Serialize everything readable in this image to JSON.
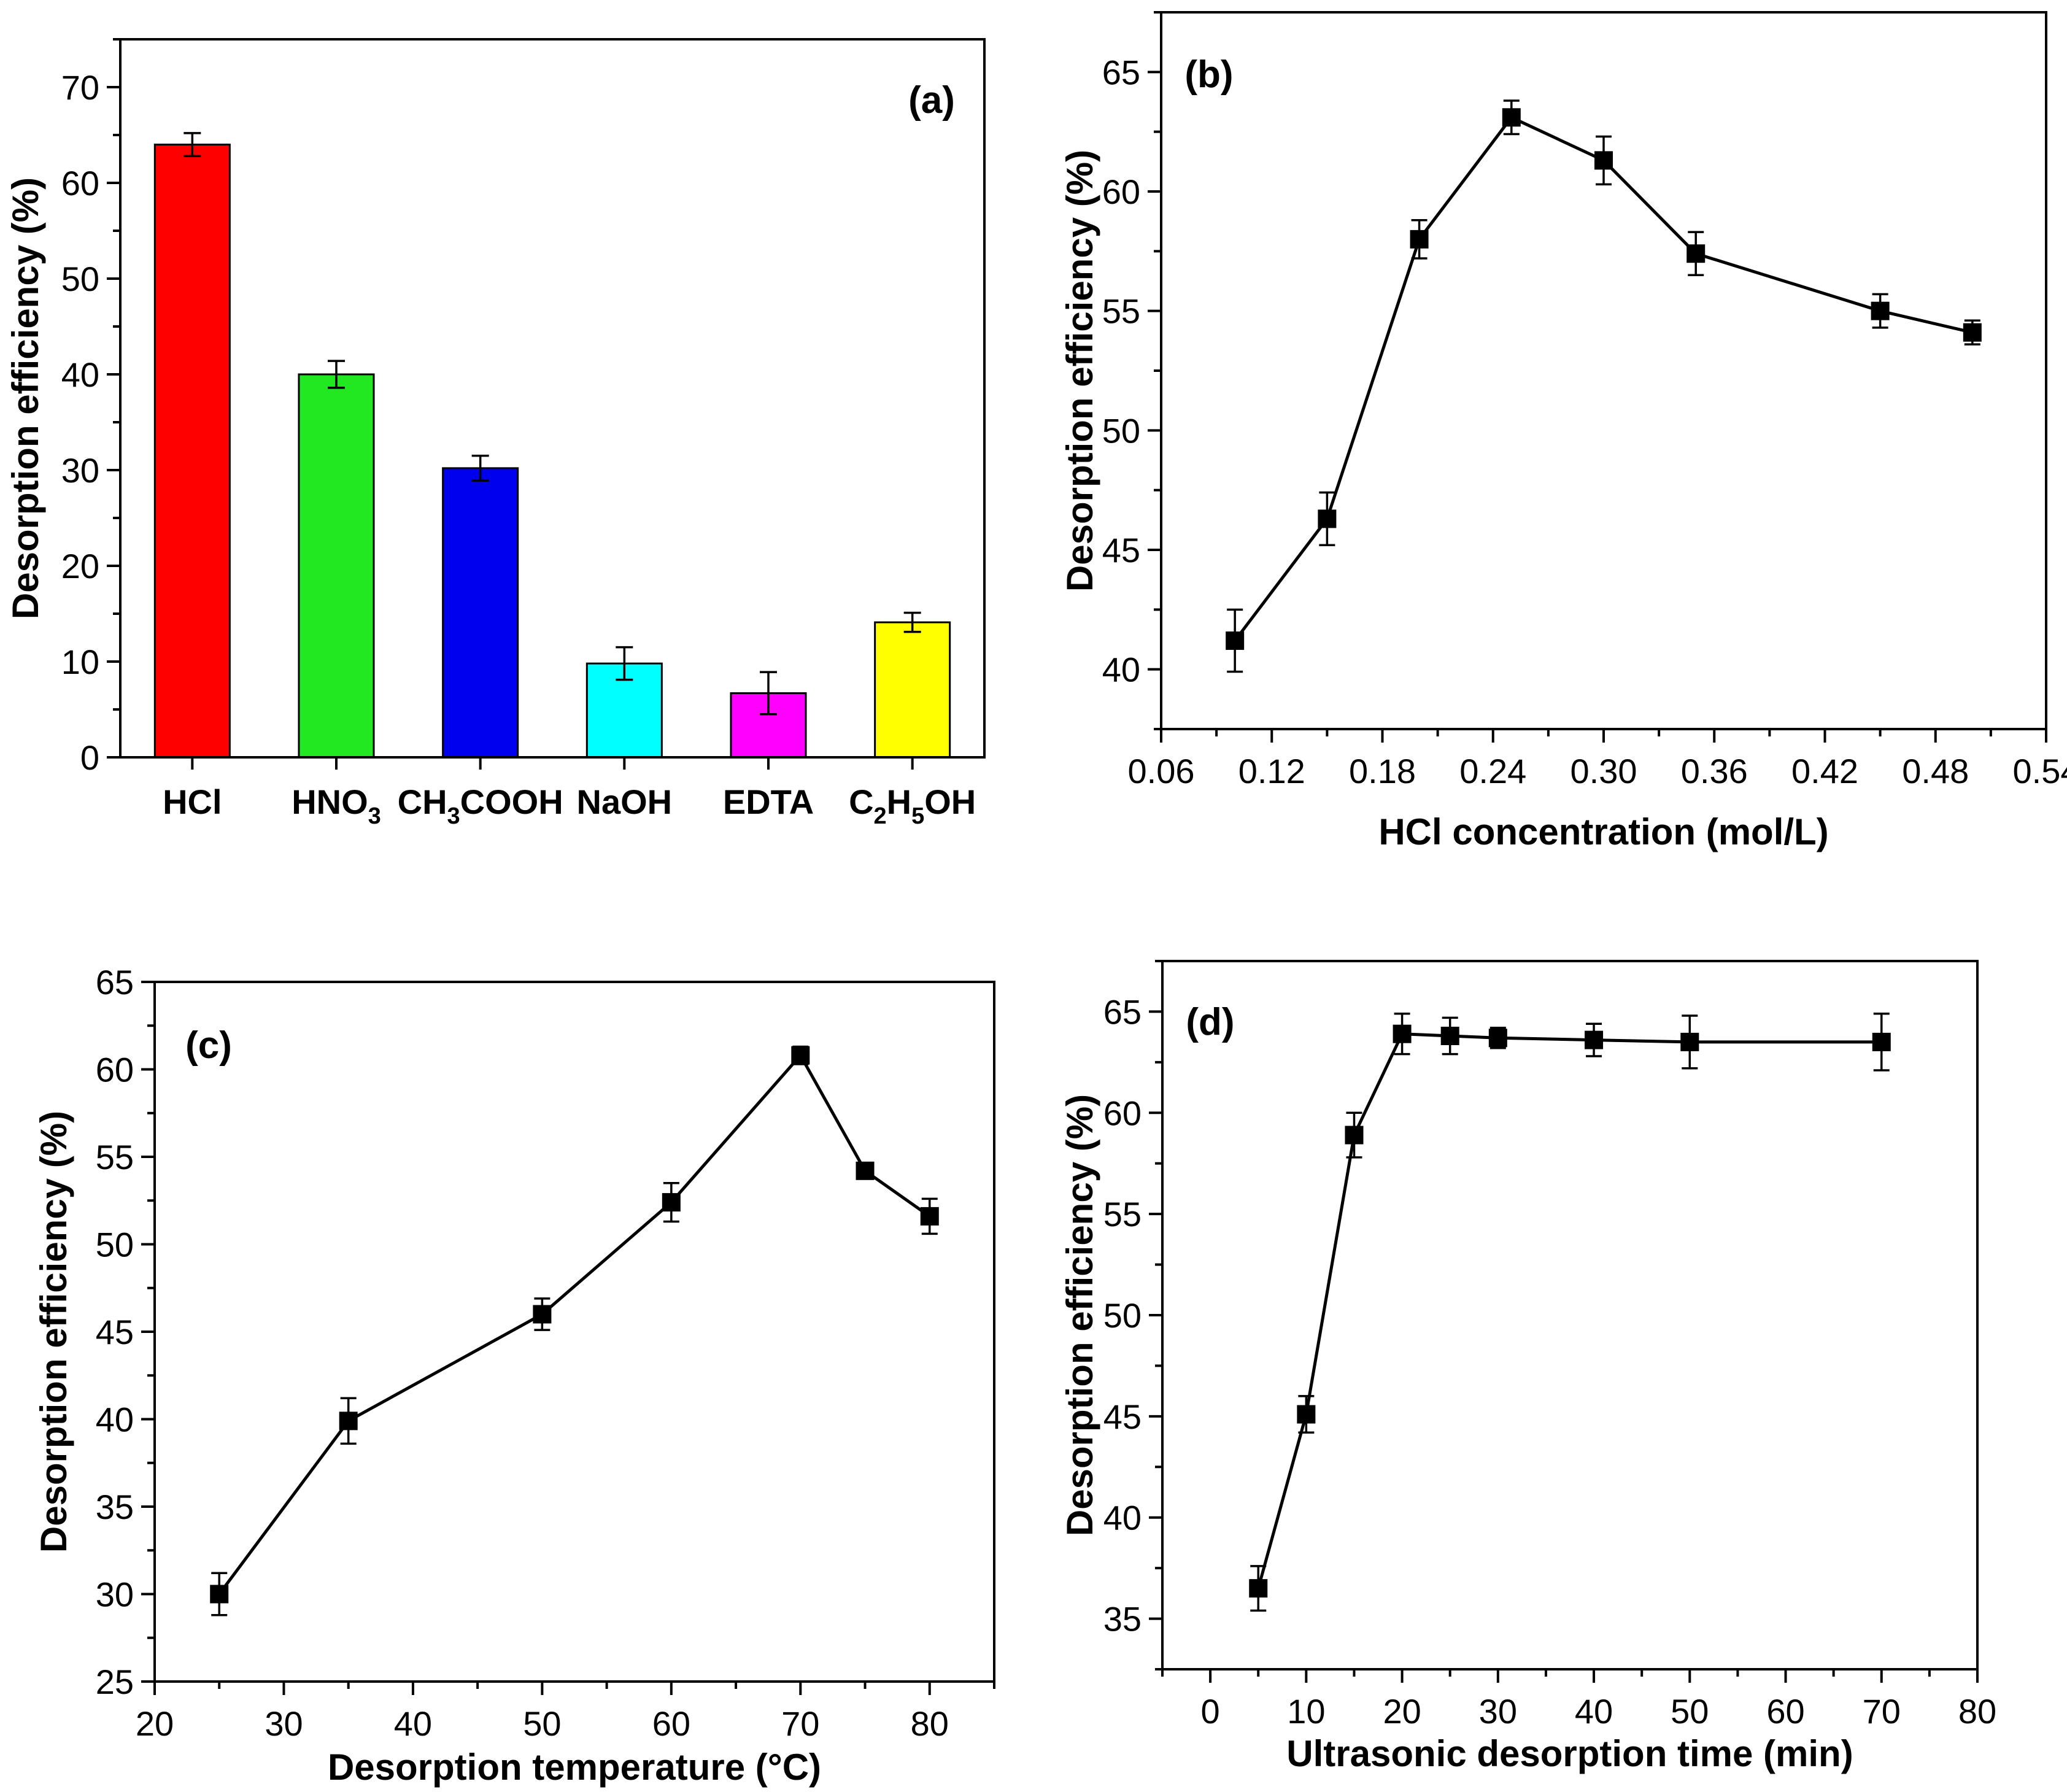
{
  "chart_data": [
    {
      "id": "a",
      "type": "bar",
      "panel_label": "(a)",
      "ylabel": "Desorption efficiency (%)",
      "xlabel": "",
      "ylim": [
        0,
        75
      ],
      "yticks": [
        0,
        10,
        20,
        30,
        40,
        50,
        60,
        70
      ],
      "categories": [
        {
          "main": "HCl",
          "parts": [
            {
              "t": "HCl"
            }
          ]
        },
        {
          "main": "HNO3",
          "parts": [
            {
              "t": "HNO"
            },
            {
              "t": "3",
              "sub": true
            }
          ]
        },
        {
          "main": "CH3COOH",
          "parts": [
            {
              "t": "CH"
            },
            {
              "t": "3",
              "sub": true
            },
            {
              "t": "COOH"
            }
          ]
        },
        {
          "main": "NaOH",
          "parts": [
            {
              "t": "NaOH"
            }
          ]
        },
        {
          "main": "EDTA",
          "parts": [
            {
              "t": "EDTA"
            }
          ]
        },
        {
          "main": "C2H5OH",
          "parts": [
            {
              "t": "C"
            },
            {
              "t": "2",
              "sub": true
            },
            {
              "t": "H"
            },
            {
              "t": "5",
              "sub": true
            },
            {
              "t": "OH"
            }
          ]
        }
      ],
      "values": [
        64.0,
        40.0,
        30.2,
        9.8,
        6.7,
        14.1
      ],
      "errors": [
        1.2,
        1.4,
        1.3,
        1.7,
        2.2,
        1.0
      ],
      "colors": [
        "#ff0000",
        "#22e822",
        "#0000ee",
        "#00ffff",
        "#ff00ff",
        "#ffff00"
      ]
    },
    {
      "id": "b",
      "type": "line",
      "panel_label": "(b)",
      "ylabel": "Desorption efficiency (%)",
      "xlabel": "HCl concentration (mol/L)",
      "xlim": [
        0.06,
        0.54
      ],
      "ylim": [
        37.5,
        67.5
      ],
      "xticks": [
        "0.06",
        "0.12",
        "0.18",
        "0.24",
        "0.30",
        "0.36",
        "0.42",
        "0.48",
        "0.54"
      ],
      "yticks": [
        40,
        45,
        50,
        55,
        60,
        65
      ],
      "x": [
        0.1,
        0.15,
        0.2,
        0.25,
        0.3,
        0.35,
        0.45,
        0.5
      ],
      "y": [
        41.2,
        46.3,
        58.0,
        63.1,
        61.3,
        57.4,
        55.0,
        54.1
      ],
      "errors": [
        1.3,
        1.1,
        0.8,
        0.7,
        1.0,
        0.9,
        0.7,
        0.5
      ]
    },
    {
      "id": "c",
      "type": "line",
      "panel_label": "(c)",
      "ylabel": "Desorption efficiency (%)",
      "xlabel": "Desorption temperature (°C)",
      "xlim": [
        20,
        85
      ],
      "ylim": [
        25,
        65
      ],
      "xticks": [
        20,
        30,
        40,
        50,
        60,
        70,
        80
      ],
      "yticks": [
        25,
        30,
        35,
        40,
        45,
        50,
        55,
        60,
        65
      ],
      "x": [
        25,
        35,
        50,
        60,
        70,
        75,
        80
      ],
      "y": [
        30.0,
        39.9,
        46.0,
        52.4,
        60.8,
        54.2,
        51.6
      ],
      "errors": [
        1.2,
        1.3,
        0.9,
        1.1,
        0.5,
        0.4,
        1.0
      ]
    },
    {
      "id": "d",
      "type": "line",
      "panel_label": "(d)",
      "ylabel": "Desorption efficiency (%)",
      "xlabel": "Ultrasonic desorption time (min)",
      "xlim": [
        -5,
        80
      ],
      "ylim": [
        32.5,
        67.5
      ],
      "xticks": [
        0,
        10,
        20,
        30,
        40,
        50,
        60,
        70,
        80
      ],
      "yticks": [
        35,
        40,
        45,
        50,
        55,
        60,
        65
      ],
      "x": [
        5,
        10,
        15,
        20,
        25,
        30,
        40,
        50,
        70
      ],
      "y": [
        36.5,
        45.1,
        58.9,
        63.9,
        63.8,
        63.7,
        63.6,
        63.5,
        63.5
      ],
      "errors": [
        1.1,
        0.9,
        1.1,
        1.0,
        0.9,
        0.5,
        0.8,
        1.3,
        1.4
      ]
    }
  ]
}
